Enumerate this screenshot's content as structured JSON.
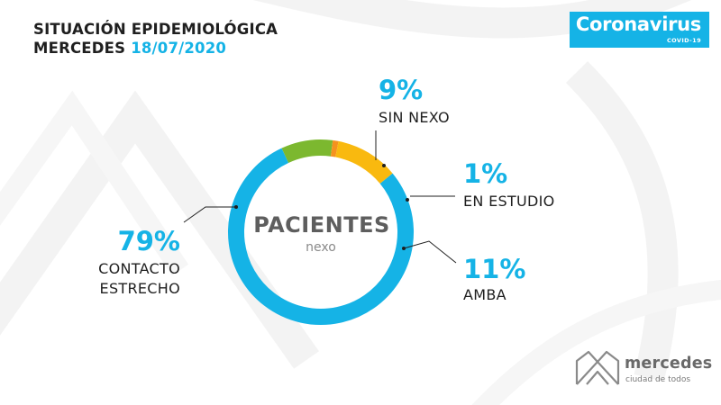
{
  "header": {
    "title_line1": "SITUACIÓN EPIDEMIOLÓGICA",
    "title_line2_place": "MERCEDES",
    "title_line2_date": "18/07/2020"
  },
  "badge": {
    "title": "Coronavirus",
    "subtitle": "COVID-19"
  },
  "logo": {
    "name": "mercedes",
    "tagline": "ciudad de todos"
  },
  "colors": {
    "accent": "#15b3e6",
    "green": "#7cb82f",
    "orange": "#f5921e",
    "yellow": "#f9b90f",
    "text": "#1f1f1f"
  },
  "chart_data": {
    "type": "pie",
    "center_label": "PACIENTES",
    "center_sublabel": "nexo",
    "slices": [
      {
        "label": "SIN NEXO",
        "value": 9,
        "display": "9%",
        "color": "#7cb82f"
      },
      {
        "label": "EN ESTUDIO",
        "value": 1,
        "display": "1%",
        "color": "#f5921e"
      },
      {
        "label": "AMBA",
        "value": 11,
        "display": "11%",
        "color": "#f9b90f"
      },
      {
        "label": "CONTACTO ESTRECHO",
        "display_lines": [
          "CONTACTO",
          "ESTRECHO"
        ],
        "value": 79,
        "display": "79%",
        "color": "#15b3e6"
      }
    ]
  }
}
